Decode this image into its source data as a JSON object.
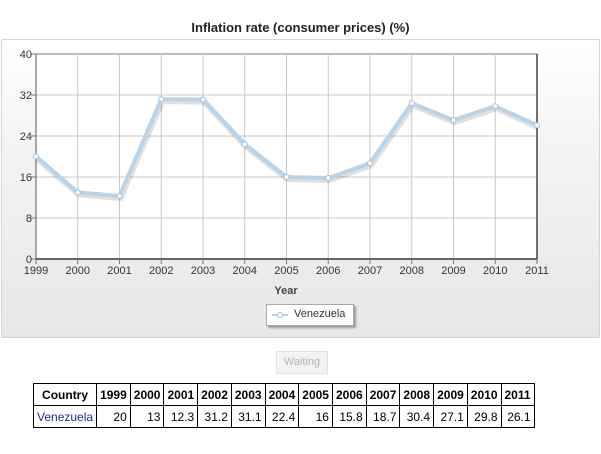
{
  "chart_data": {
    "type": "line",
    "title": "Inflation rate (consumer prices) (%)",
    "xlabel": "Year",
    "ylabel": "",
    "categories": [
      "1999",
      "2000",
      "2001",
      "2002",
      "2003",
      "2004",
      "2005",
      "2006",
      "2007",
      "2008",
      "2009",
      "2010",
      "2011"
    ],
    "yticks": [
      "0",
      "8",
      "16",
      "24",
      "32",
      "40"
    ],
    "ylim": [
      0,
      40
    ],
    "grid": true,
    "legend_position": "bottom-center",
    "series": [
      {
        "name": "Venezuela",
        "values": [
          20,
          13,
          12.3,
          31.2,
          31.1,
          22.4,
          16,
          15.8,
          18.7,
          30.4,
          27.1,
          29.8,
          26.1
        ],
        "color": "#b9d3e9"
      }
    ]
  },
  "waiting_label": "Waiting",
  "table": {
    "header_label": "Country",
    "years": [
      "1999",
      "2000",
      "2001",
      "2002",
      "2003",
      "2004",
      "2005",
      "2006",
      "2007",
      "2008",
      "2009",
      "2010",
      "2011"
    ],
    "rows": [
      {
        "country": "Venezuela",
        "values": [
          "20",
          "13",
          "12.3",
          "31.2",
          "31.1",
          "22.4",
          "16",
          "15.8",
          "18.7",
          "30.4",
          "27.1",
          "29.8",
          "26.1"
        ]
      }
    ]
  }
}
